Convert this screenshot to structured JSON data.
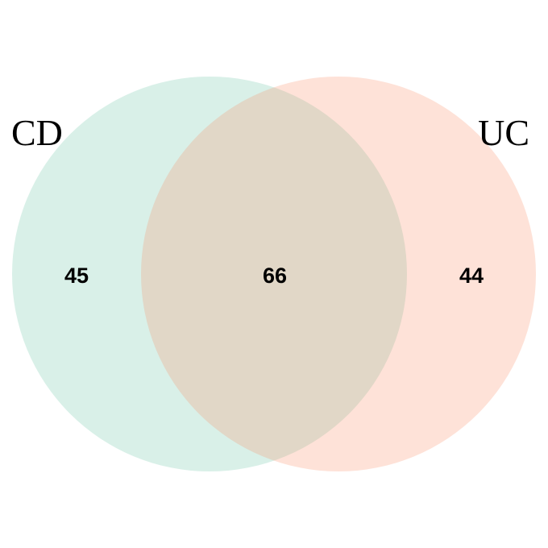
{
  "sets": [
    {
      "name": "CD",
      "color": "#66C2A5",
      "opacity": 0.25
    },
    {
      "name": "UC",
      "color": "#FC8D62",
      "opacity": 0.25
    }
  ],
  "counts": {
    "cd_only": "45",
    "intersection": "66",
    "uc_only": "44"
  }
}
